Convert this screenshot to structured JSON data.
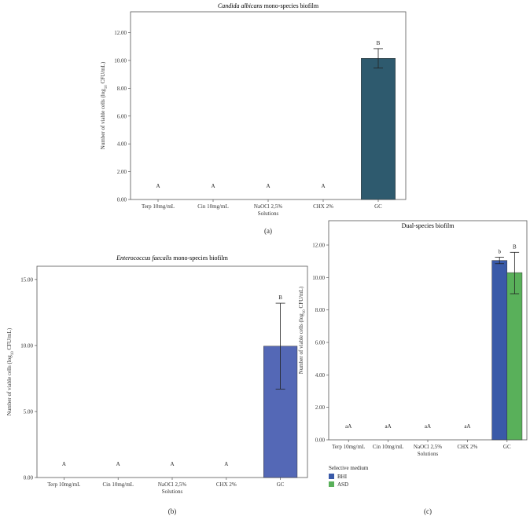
{
  "chart_data": [
    {
      "id": "a",
      "type": "bar",
      "panel_label": "(a)",
      "title_italic": "Candida albicans",
      "title_rest": "mono-species biofilm",
      "xlabel": "Solutions",
      "ylabel_main": "Number of viable cells (log",
      "ylabel_sub": "10",
      "ylabel_end": " CFU/mL)",
      "categories": [
        "Terp 10mg/mL",
        "Cin 10mg/mL",
        "NaOCl 2,5%",
        "CHX 2%",
        "GC"
      ],
      "ylim": [
        0,
        13.5
      ],
      "yticks": [
        0,
        2,
        4,
        6,
        8,
        10,
        12
      ],
      "ytick_labels": [
        "0.00",
        "2.00",
        "4.00",
        "6.00",
        "8.00",
        "10.00",
        "12.00"
      ],
      "series": [
        {
          "name": "",
          "color": "#2e5a6e",
          "values": [
            0,
            0,
            0,
            0,
            10.15
          ],
          "err_low": [
            null,
            null,
            null,
            null,
            9.45
          ],
          "err_high": [
            null,
            null,
            null,
            null,
            10.85
          ],
          "letters": [
            "A",
            "A",
            "A",
            "A",
            "B"
          ]
        }
      ]
    },
    {
      "id": "b",
      "type": "bar",
      "panel_label": "(b)",
      "title_italic": "Enterococcus faecalis",
      "title_rest": "mono-species biofilm",
      "xlabel": "Solutions",
      "ylabel_main": "Number of viable cells (log",
      "ylabel_sub": "10",
      "ylabel_end": " CFU/mL)",
      "categories": [
        "Terp 10mg/mL",
        "Cin 10mg/mL",
        "NaOCl 2,5%",
        "CHX 2%",
        "GC"
      ],
      "ylim": [
        0,
        16
      ],
      "yticks": [
        0,
        5,
        10,
        15
      ],
      "ytick_labels": [
        "0.00",
        "5.00",
        "10.00",
        "15.00"
      ],
      "series": [
        {
          "name": "",
          "color": "#5468b6",
          "values": [
            0,
            0,
            0,
            0,
            9.95
          ],
          "err_low": [
            null,
            null,
            null,
            null,
            6.7
          ],
          "err_high": [
            null,
            null,
            null,
            null,
            13.2
          ],
          "letters": [
            "A",
            "A",
            "A",
            "A",
            "B"
          ]
        }
      ]
    },
    {
      "id": "c",
      "type": "bar",
      "panel_label": "(c)",
      "title_italic": "",
      "title_rest": "Dual-species biofilm",
      "xlabel": "Solutions",
      "ylabel_main": "Number of viable cells (log",
      "ylabel_sub": "10",
      "ylabel_end": " CFU/mL)",
      "categories": [
        "Terp 10mg/mL",
        "Cin 10mg/mL",
        "NaOCl 2,5%",
        "CHX 2%",
        "GC"
      ],
      "ylim": [
        0,
        13.5
      ],
      "yticks": [
        0,
        2,
        4,
        6,
        8,
        10,
        12
      ],
      "ytick_labels": [
        "0.00",
        "2.00",
        "4.00",
        "6.00",
        "8.00",
        "10.00",
        "12.00"
      ],
      "group_letters": [
        "aA",
        "aA",
        "aA",
        "aA",
        ""
      ],
      "legend_title": "Selective medium",
      "series": [
        {
          "name": "BHI",
          "color": "#3a5aa8",
          "values": [
            0,
            0,
            0,
            0,
            11.05
          ],
          "err_low": [
            null,
            null,
            null,
            null,
            10.85
          ],
          "err_high": [
            null,
            null,
            null,
            null,
            11.25
          ],
          "letters": [
            "",
            "",
            "",
            "",
            "b"
          ]
        },
        {
          "name": "ASD",
          "color": "#59b05a",
          "values": [
            0,
            0,
            0,
            0,
            10.3
          ],
          "err_low": [
            null,
            null,
            null,
            null,
            9.0
          ],
          "err_high": [
            null,
            null,
            null,
            null,
            11.55
          ],
          "letters": [
            "",
            "",
            "",
            "",
            "B"
          ]
        }
      ]
    }
  ]
}
